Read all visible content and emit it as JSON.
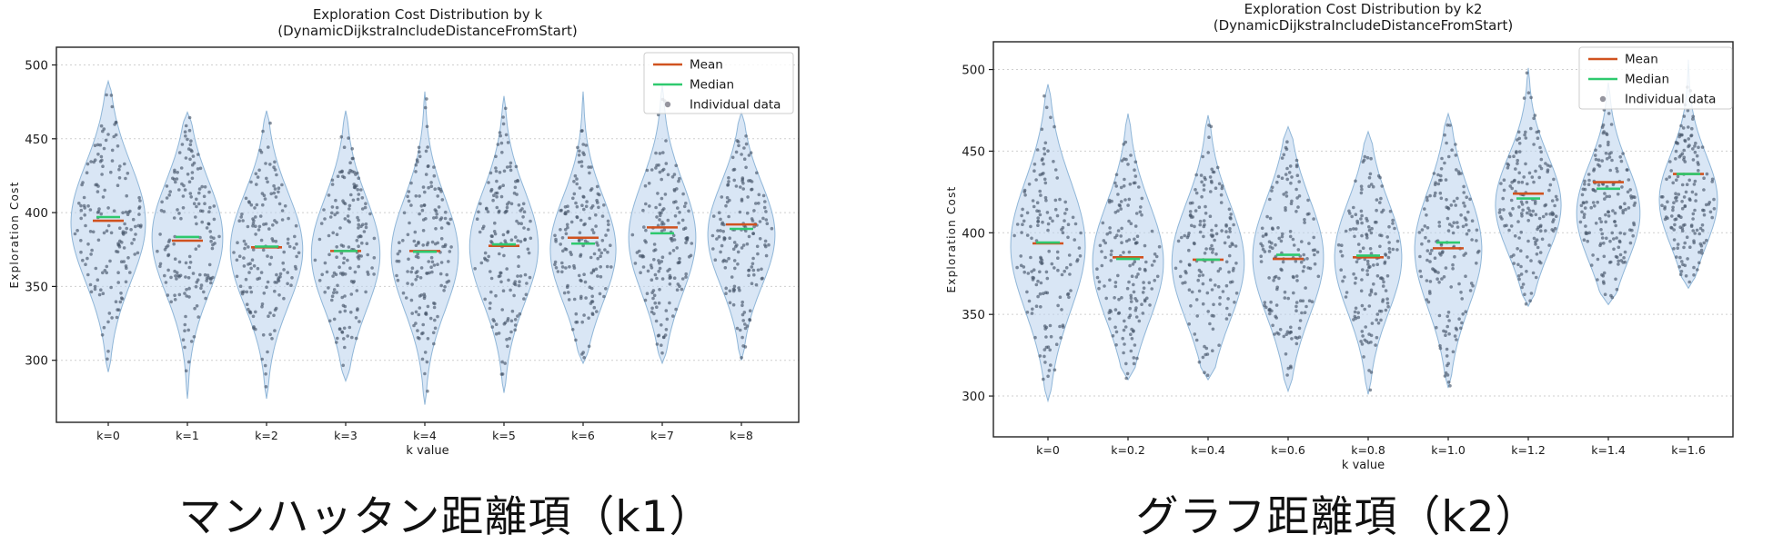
{
  "page": {
    "background": "#ffffff"
  },
  "chart_data": [
    {
      "type": "violin",
      "title": "Exploration Cost Distribution by k",
      "subtitle": "(DynamicDijkstraIncludeDistanceFromStart)",
      "xlabel": "k value",
      "ylabel": "Exploration Cost",
      "yticks": [
        300,
        350,
        400,
        450,
        500
      ],
      "ylim": [
        258,
        512
      ],
      "grid": "horizontal-dashed",
      "legend_position": "upper-right",
      "legend": [
        {
          "label": "Mean",
          "type": "line",
          "color": "#d0521f"
        },
        {
          "label": "Median",
          "type": "line",
          "color": "#2ec96e"
        },
        {
          "label": "Individual data",
          "type": "point",
          "color": "#8a8a94"
        }
      ],
      "categories": [
        "k=0",
        "k=1",
        "k=2",
        "k=3",
        "k=4",
        "k=5",
        "k=6",
        "k=7",
        "k=8"
      ],
      "series": [
        {
          "category": "k=0",
          "mean": 394.5,
          "median": 397,
          "min": 292,
          "max": 489,
          "peak": 393,
          "sigma": 40,
          "width": 1.0,
          "n_points": 160
        },
        {
          "category": "k=1",
          "mean": 381,
          "median": 383.5,
          "min": 274,
          "max": 468,
          "peak": 383,
          "sigma": 38,
          "width": 0.95,
          "n_points": 160
        },
        {
          "category": "k=2",
          "mean": 376.5,
          "median": 377,
          "min": 274,
          "max": 469,
          "peak": 375,
          "sigma": 38,
          "width": 0.97,
          "n_points": 160
        },
        {
          "category": "k=3",
          "mean": 374,
          "median": 374,
          "min": 286,
          "max": 469,
          "peak": 372,
          "sigma": 38,
          "width": 0.92,
          "n_points": 160
        },
        {
          "category": "k=4",
          "mean": 374,
          "median": 373.5,
          "min": 270,
          "max": 482,
          "peak": 372,
          "sigma": 38,
          "width": 0.9,
          "n_points": 160
        },
        {
          "category": "k=5",
          "mean": 377.5,
          "median": 378.5,
          "min": 278,
          "max": 479,
          "peak": 377,
          "sigma": 38,
          "width": 0.92,
          "n_points": 160
        },
        {
          "category": "k=6",
          "mean": 383,
          "median": 379,
          "min": 298,
          "max": 482,
          "peak": 375,
          "sigma": 36,
          "width": 0.88,
          "n_points": 160
        },
        {
          "category": "k=7",
          "mean": 390,
          "median": 386,
          "min": 298,
          "max": 486,
          "peak": 383,
          "sigma": 38,
          "width": 0.9,
          "n_points": 160
        },
        {
          "category": "k=8",
          "mean": 392,
          "median": 389,
          "min": 300,
          "max": 468,
          "peak": 385,
          "sigma": 35,
          "width": 0.9,
          "n_points": 160
        }
      ],
      "colors": {
        "violin_fill": "#bad1ec",
        "violin_edge": "#85afd4",
        "point": "#47566a",
        "mean": "#d0521f",
        "median": "#2ec96e"
      },
      "caption": "マンハッタン距離項（k1）"
    },
    {
      "type": "violin",
      "title": "Exploration Cost Distribution by k2",
      "subtitle": "(DynamicDijkstraIncludeDistanceFromStart)",
      "xlabel": "k value",
      "ylabel": "Exploration Cost",
      "yticks": [
        300,
        350,
        400,
        450,
        500
      ],
      "ylim": [
        275,
        517
      ],
      "grid": "horizontal-dashed",
      "legend_position": "upper-right",
      "legend": [
        {
          "label": "Mean",
          "type": "line",
          "color": "#d0521f"
        },
        {
          "label": "Median",
          "type": "line",
          "color": "#2ec96e"
        },
        {
          "label": "Individual data",
          "type": "point",
          "color": "#8a8a94"
        }
      ],
      "categories": [
        "k=0",
        "k=0.2",
        "k=0.4",
        "k=0.6",
        "k=0.8",
        "k=1.0",
        "k=1.2",
        "k=1.4",
        "k=1.6"
      ],
      "series": [
        {
          "category": "k=0",
          "mean": 393.5,
          "median": 394,
          "min": 297,
          "max": 491,
          "peak": 392,
          "sigma": 40,
          "width": 1.0,
          "n_points": 160
        },
        {
          "category": "k=0.2",
          "mean": 385,
          "median": 384,
          "min": 310,
          "max": 473,
          "peak": 382,
          "sigma": 36,
          "width": 0.95,
          "n_points": 160
        },
        {
          "category": "k=0.4",
          "mean": 383.5,
          "median": 383.5,
          "min": 310,
          "max": 472,
          "peak": 382,
          "sigma": 36,
          "width": 0.97,
          "n_points": 160
        },
        {
          "category": "k=0.6",
          "mean": 384,
          "median": 386.5,
          "min": 303,
          "max": 465,
          "peak": 385,
          "sigma": 36,
          "width": 0.95,
          "n_points": 160
        },
        {
          "category": "k=0.8",
          "mean": 385,
          "median": 386,
          "min": 301,
          "max": 462,
          "peak": 385,
          "sigma": 34,
          "width": 0.9,
          "n_points": 160
        },
        {
          "category": "k=1.0",
          "mean": 390.5,
          "median": 394,
          "min": 305,
          "max": 473,
          "peak": 390,
          "sigma": 36,
          "width": 0.9,
          "n_points": 160
        },
        {
          "category": "k=1.2",
          "mean": 424,
          "median": 421,
          "min": 355,
          "max": 501,
          "peak": 417,
          "sigma": 30,
          "width": 0.88,
          "n_points": 160
        },
        {
          "category": "k=1.4",
          "mean": 431,
          "median": 427,
          "min": 356,
          "max": 492,
          "peak": 412,
          "sigma": 30,
          "width": 0.85,
          "n_points": 160
        },
        {
          "category": "k=1.6",
          "mean": 436,
          "median": 436,
          "min": 366,
          "max": 506,
          "peak": 420,
          "sigma": 28,
          "width": 0.78,
          "n_points": 160
        }
      ],
      "colors": {
        "violin_fill": "#bad1ec",
        "violin_edge": "#85afd4",
        "point": "#47566a",
        "mean": "#d0521f",
        "median": "#2ec96e"
      },
      "caption": "グラフ距離項（k2）"
    }
  ]
}
